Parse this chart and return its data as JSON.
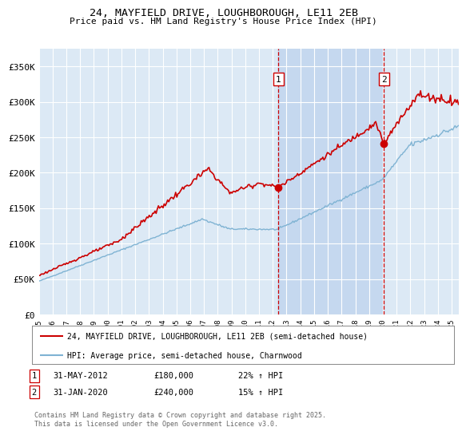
{
  "title": "24, MAYFIELD DRIVE, LOUGHBOROUGH, LE11 2EB",
  "subtitle": "Price paid vs. HM Land Registry's House Price Index (HPI)",
  "ylabel_ticks": [
    "£0",
    "£50K",
    "£100K",
    "£150K",
    "£200K",
    "£250K",
    "£300K",
    "£350K"
  ],
  "ytick_values": [
    0,
    50000,
    100000,
    150000,
    200000,
    250000,
    300000,
    350000
  ],
  "ylim": [
    0,
    375000
  ],
  "xlim_start": 1995.0,
  "xlim_end": 2025.5,
  "background_color": "#dce9f5",
  "plot_bg_color": "#dce9f5",
  "shade_color": "#c5d8ef",
  "red_line_color": "#cc0000",
  "blue_line_color": "#7fb3d3",
  "grid_color": "#ffffff",
  "annotation1": {
    "label": "1",
    "date_str": "31-MAY-2012",
    "price": "£180,000",
    "hpi": "22% ↑ HPI",
    "x_year": 2012.42,
    "y_val": 180000
  },
  "annotation2": {
    "label": "2",
    "date_str": "31-JAN-2020",
    "price": "£240,000",
    "hpi": "15% ↑ HPI",
    "x_year": 2020.08,
    "y_val": 240000
  },
  "legend_red": "24, MAYFIELD DRIVE, LOUGHBOROUGH, LE11 2EB (semi-detached house)",
  "legend_blue": "HPI: Average price, semi-detached house, Charnwood",
  "footer": "Contains HM Land Registry data © Crown copyright and database right 2025.\nThis data is licensed under the Open Government Licence v3.0.",
  "xtick_years": [
    1995,
    1996,
    1997,
    1998,
    1999,
    2000,
    2001,
    2002,
    2003,
    2004,
    2005,
    2006,
    2007,
    2008,
    2009,
    2010,
    2011,
    2012,
    2013,
    2014,
    2015,
    2016,
    2017,
    2018,
    2019,
    2020,
    2021,
    2022,
    2023,
    2024,
    2025
  ]
}
